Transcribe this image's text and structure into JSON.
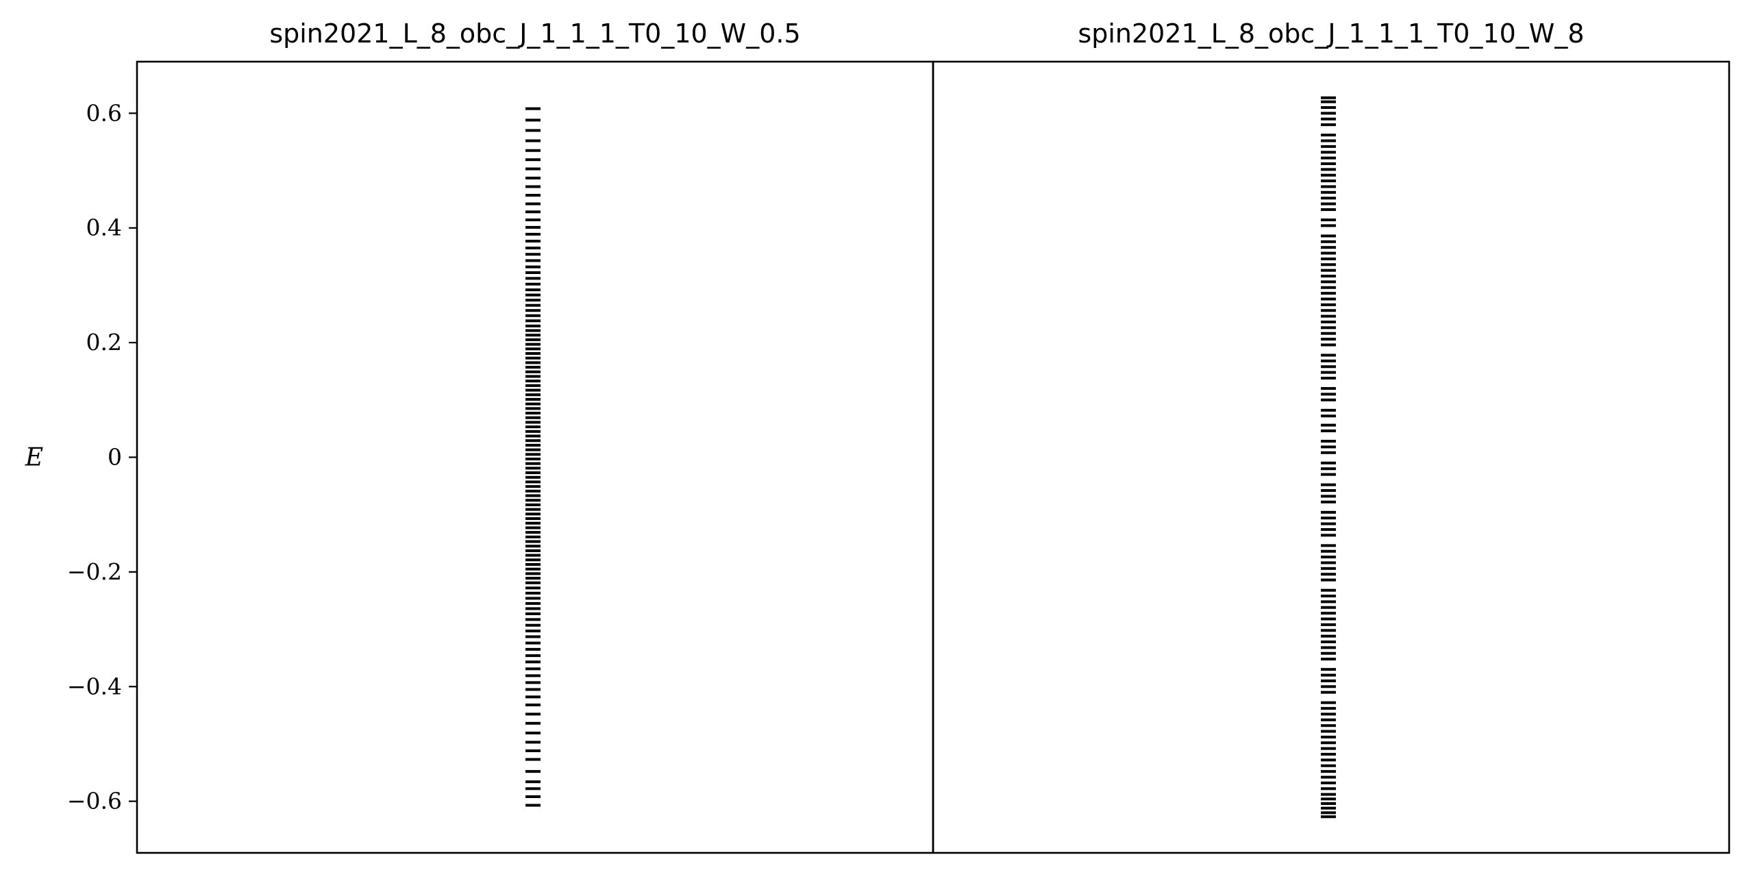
{
  "chart_data": [
    {
      "type": "scatter",
      "marker": "horizontal-line",
      "title": "spin2021_L_8_obc_J_1_1_1_T0_10_W_0.5",
      "ylabel": "E",
      "yticks": [
        0.6,
        0.4,
        0.2,
        0,
        -0.2,
        -0.4,
        -0.6
      ],
      "ytick_labels": [
        "0.6",
        "0.4",
        "0.2",
        "0",
        "−0.2",
        "−0.4",
        "−0.6"
      ],
      "ylim": [
        -0.69,
        0.69
      ],
      "x": 0,
      "y": [
        -0.607,
        -0.592,
        -0.578,
        -0.566,
        -0.548,
        -0.527,
        -0.512,
        -0.497,
        -0.481,
        -0.464,
        -0.448,
        -0.432,
        -0.418,
        -0.405,
        -0.393,
        -0.381,
        -0.369,
        -0.357,
        -0.346,
        -0.335,
        -0.324,
        -0.313,
        -0.303,
        -0.293,
        -0.283,
        -0.273,
        -0.264,
        -0.255,
        -0.246,
        -0.237,
        -0.228,
        -0.219,
        -0.211,
        -0.203,
        -0.195,
        -0.187,
        -0.179,
        -0.171,
        -0.163,
        -0.155,
        -0.147,
        -0.139,
        -0.131,
        -0.123,
        -0.115,
        -0.107,
        -0.099,
        -0.091,
        -0.083,
        -0.075,
        -0.067,
        -0.059,
        -0.051,
        -0.043,
        -0.035,
        -0.027,
        -0.019,
        -0.011,
        -0.003,
        0.005,
        0.013,
        0.021,
        0.029,
        0.037,
        0.045,
        0.053,
        0.061,
        0.069,
        0.077,
        0.085,
        0.093,
        0.101,
        0.109,
        0.117,
        0.125,
        0.133,
        0.141,
        0.149,
        0.157,
        0.165,
        0.173,
        0.181,
        0.189,
        0.197,
        0.205,
        0.213,
        0.221,
        0.229,
        0.238,
        0.247,
        0.256,
        0.265,
        0.274,
        0.283,
        0.292,
        0.302,
        0.312,
        0.322,
        0.332,
        0.343,
        0.354,
        0.365,
        0.377,
        0.389,
        0.401,
        0.414,
        0.428,
        0.442,
        0.457,
        0.472,
        0.487,
        0.503,
        0.519,
        0.535,
        0.552,
        0.57,
        0.588,
        0.608
      ]
    },
    {
      "type": "scatter",
      "marker": "horizontal-line",
      "title": "spin2021_L_8_obc_J_1_1_1_T0_10_W_8",
      "ylim": [
        -0.69,
        0.69
      ],
      "x": 0,
      "y": [
        -0.627,
        -0.62,
        -0.612,
        -0.604,
        -0.596,
        -0.588,
        -0.578,
        -0.568,
        -0.558,
        -0.548,
        -0.538,
        -0.528,
        -0.518,
        -0.508,
        -0.498,
        -0.488,
        -0.478,
        -0.468,
        -0.458,
        -0.448,
        -0.438,
        -0.428,
        -0.41,
        -0.4,
        -0.39,
        -0.38,
        -0.37,
        -0.352,
        -0.342,
        -0.332,
        -0.322,
        -0.312,
        -0.302,
        -0.292,
        -0.282,
        -0.272,
        -0.262,
        -0.252,
        -0.242,
        -0.232,
        -0.214,
        -0.204,
        -0.194,
        -0.184,
        -0.174,
        -0.164,
        -0.154,
        -0.136,
        -0.126,
        -0.116,
        -0.106,
        -0.096,
        -0.078,
        -0.068,
        -0.058,
        -0.048,
        -0.03,
        -0.02,
        -0.01,
        0.008,
        0.018,
        0.028,
        0.046,
        0.056,
        0.072,
        0.082,
        0.1,
        0.11,
        0.12,
        0.138,
        0.148,
        0.158,
        0.168,
        0.178,
        0.196,
        0.206,
        0.216,
        0.226,
        0.236,
        0.246,
        0.256,
        0.266,
        0.276,
        0.286,
        0.296,
        0.306,
        0.316,
        0.326,
        0.336,
        0.346,
        0.356,
        0.366,
        0.376,
        0.386,
        0.404,
        0.414,
        0.432,
        0.442,
        0.452,
        0.462,
        0.472,
        0.482,
        0.492,
        0.502,
        0.512,
        0.522,
        0.532,
        0.542,
        0.552,
        0.562,
        0.58,
        0.59,
        0.6,
        0.61,
        0.62,
        0.627
      ]
    }
  ]
}
